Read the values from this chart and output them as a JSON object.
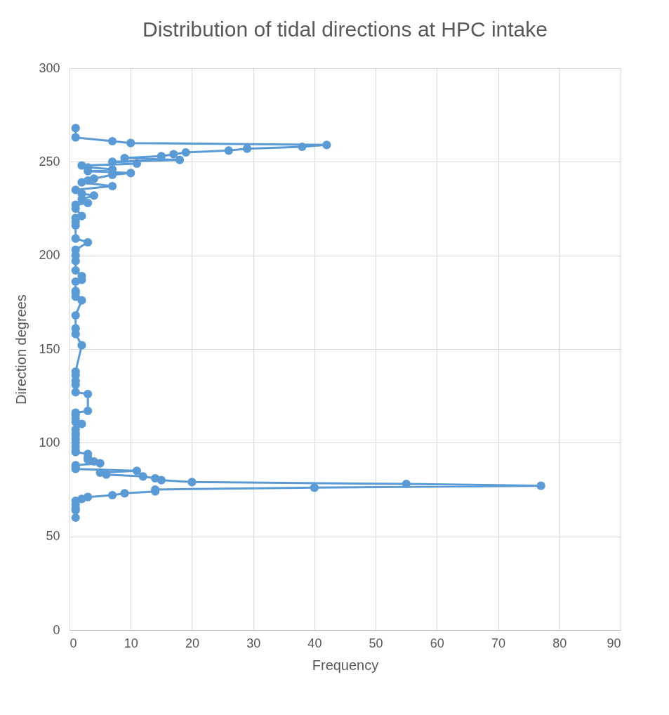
{
  "chart_data": {
    "type": "line",
    "title": "Distribution of tidal directions at HPC intake",
    "xlabel": "Frequency",
    "ylabel": "Direction degrees",
    "x": [
      1,
      1,
      1,
      1,
      1,
      2,
      3,
      7,
      9,
      14,
      14,
      40,
      77,
      55,
      20,
      15,
      14,
      12,
      6,
      5,
      11,
      1,
      1,
      1,
      5,
      4,
      3,
      3,
      3,
      1,
      1,
      1,
      1,
      1,
      1,
      1,
      1,
      2,
      1,
      1,
      1,
      1,
      3,
      3,
      1,
      1,
      1,
      1,
      1,
      2,
      1,
      1,
      1,
      2,
      1,
      1,
      1,
      1,
      2,
      2,
      1,
      1,
      1,
      1,
      3,
      1,
      1,
      1,
      1,
      2,
      1,
      1,
      3,
      2,
      4,
      2,
      1,
      7,
      2,
      3,
      4,
      7,
      10,
      3,
      7,
      3,
      2,
      11,
      7,
      18,
      9,
      15,
      17,
      19,
      26,
      29,
      38,
      42,
      10,
      7,
      1,
      1
    ],
    "values": [
      60,
      64,
      65,
      67,
      69,
      70,
      71,
      72,
      73,
      74,
      75,
      76,
      77,
      78,
      79,
      80,
      81,
      82,
      83,
      84,
      85,
      86,
      87,
      88,
      89,
      90,
      91,
      92,
      94,
      95,
      96,
      98,
      100,
      102,
      104,
      105,
      107,
      110,
      111,
      113,
      115,
      116,
      117,
      126,
      127,
      131,
      133,
      136,
      138,
      152,
      158,
      161,
      168,
      176,
      178,
      180,
      181,
      186,
      187,
      189,
      192,
      197,
      200,
      203,
      207,
      209,
      216,
      218,
      220,
      221,
      225,
      227,
      228,
      230,
      232,
      233,
      235,
      237,
      239,
      240,
      241,
      243,
      244,
      245,
      246,
      247,
      248,
      249,
      250,
      251,
      252,
      253,
      254,
      255,
      256,
      257,
      258,
      259,
      260,
      261,
      263,
      268
    ],
    "color": "#5b9bd5",
    "marker": "circle",
    "grid": true,
    "xlim": [
      0,
      90
    ],
    "xticks": [
      0,
      10,
      20,
      30,
      40,
      50,
      60,
      70,
      80,
      90
    ],
    "ylim": [
      0,
      300
    ],
    "yticks": [
      0,
      50,
      100,
      150,
      200,
      250,
      300
    ]
  }
}
